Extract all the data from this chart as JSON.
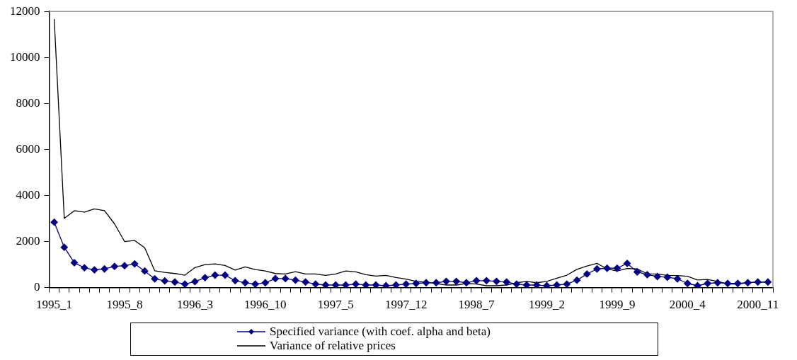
{
  "chart_data": {
    "type": "line",
    "categories": [
      "1995_1",
      null,
      null,
      null,
      null,
      null,
      null,
      "1995_8",
      null,
      null,
      null,
      null,
      null,
      null,
      "1996_3",
      null,
      null,
      null,
      null,
      null,
      null,
      "1996_10",
      null,
      null,
      null,
      null,
      null,
      null,
      "1997_5",
      null,
      null,
      null,
      null,
      null,
      null,
      "1997_12",
      null,
      null,
      null,
      null,
      null,
      null,
      "1998_7",
      null,
      null,
      null,
      null,
      null,
      null,
      "1999_2",
      null,
      null,
      null,
      null,
      null,
      null,
      "1999_9",
      null,
      null,
      null,
      null,
      null,
      null,
      "2000_4",
      null,
      null,
      null,
      null,
      null,
      null,
      "2000_11",
      null
    ],
    "series": [
      {
        "name": "Specified variance (with coef. alpha and beta)",
        "color": "#000080",
        "marker": "diamond",
        "values": [
          2840,
          1750,
          1080,
          860,
          770,
          810,
          920,
          950,
          1030,
          720,
          380,
          290,
          240,
          150,
          260,
          430,
          540,
          540,
          300,
          210,
          150,
          210,
          390,
          390,
          320,
          240,
          150,
          110,
          110,
          110,
          150,
          110,
          110,
          80,
          110,
          150,
          180,
          210,
          210,
          270,
          270,
          210,
          300,
          300,
          270,
          240,
          150,
          110,
          110,
          80,
          110,
          150,
          320,
          590,
          810,
          840,
          840,
          1050,
          680,
          560,
          480,
          450,
          380,
          180,
          80,
          180,
          210,
          180,
          180,
          210,
          240,
          240
        ]
      },
      {
        "name": "Variance of relative prices",
        "color": "#000000",
        "marker": "none",
        "values": [
          11670,
          3010,
          3340,
          3280,
          3420,
          3340,
          2770,
          2000,
          2050,
          1730,
          730,
          660,
          610,
          540,
          870,
          1000,
          1030,
          960,
          760,
          900,
          780,
          720,
          610,
          590,
          690,
          590,
          590,
          530,
          590,
          720,
          680,
          560,
          500,
          530,
          440,
          370,
          270,
          240,
          180,
          110,
          110,
          180,
          150,
          80,
          80,
          110,
          210,
          270,
          210,
          270,
          410,
          540,
          790,
          940,
          1050,
          810,
          720,
          830,
          810,
          600,
          590,
          530,
          520,
          490,
          330,
          350,
          270,
          150,
          150,
          210,
          240,
          240
        ]
      }
    ],
    "ylim": [
      0,
      12000
    ],
    "yticks": [
      0,
      2000,
      4000,
      6000,
      8000,
      10000,
      12000
    ],
    "grid": false,
    "legend": "bottom",
    "line_style": "solid"
  }
}
